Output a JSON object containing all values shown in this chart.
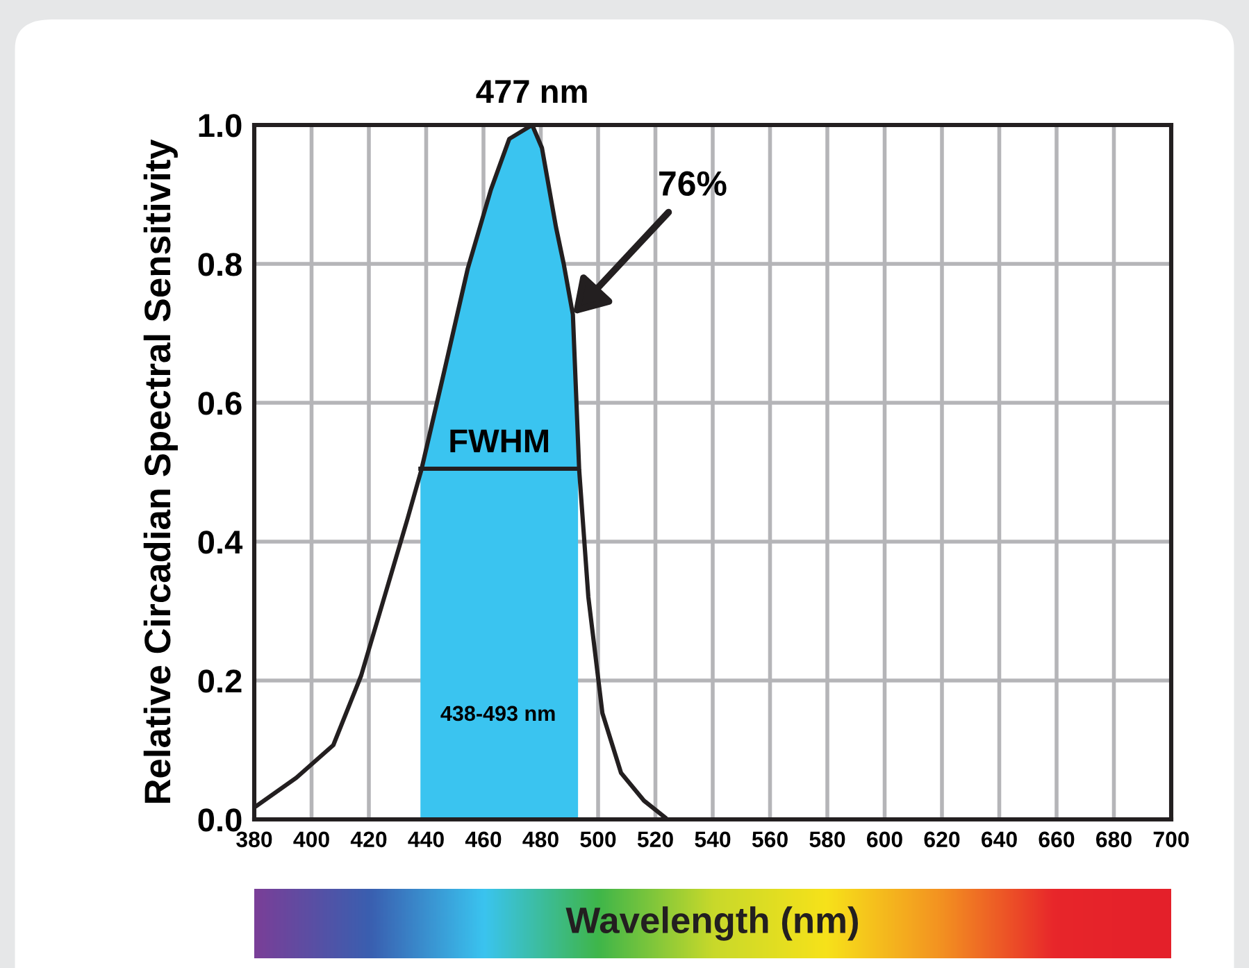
{
  "chart_data": {
    "type": "line",
    "ylabel": "Relative Circadian Spectral Sensitivity",
    "xlabel": "Wavelength (nm)",
    "series": [
      {
        "type": "area",
        "color": "#3ac4f0",
        "x": [
          438,
          446.4,
          454.5,
          462.6,
          469,
          477,
          480.4,
          485.3,
          488,
          491.2,
          493
        ],
        "values": [
          0.5,
          0.647,
          0.793,
          0.907,
          0.98,
          1.0,
          0.967,
          0.853,
          0.8,
          0.727,
          0.5
        ]
      },
      {
        "color": "#231f20",
        "x": [
          381,
          394.7,
          407.6,
          417.3,
          425.4,
          433.5,
          438.3,
          446.4,
          454.5,
          462.6,
          469,
          477,
          480.4,
          485.3,
          488,
          491.2,
          493.4,
          496.6,
          501.5,
          508,
          516,
          523.3
        ],
        "values": [
          0.02,
          0.06,
          0.107,
          0.207,
          0.32,
          0.433,
          0.503,
          0.647,
          0.793,
          0.907,
          0.98,
          1.0,
          0.967,
          0.853,
          0.8,
          0.727,
          0.503,
          0.32,
          0.153,
          0.067,
          0.027,
          0.003
        ]
      },
      {
        "type": "line",
        "color": "#231f20",
        "x": [
          438,
          465.5,
          493
        ],
        "values": [
          0.505,
          0.505,
          0.505
        ]
      }
    ],
    "annotations": [
      {
        "text": "477 nm",
        "x": 477,
        "y": 1.0
      },
      {
        "text": "76%",
        "x": 491.2,
        "y": 0.727
      },
      {
        "text": "FWHM",
        "x": 465.5,
        "y": 0.505
      },
      "438-493 nm"
    ],
    "xlim": [
      380,
      700
    ],
    "xticks": [
      380,
      400,
      420,
      440,
      460,
      480,
      500,
      520,
      540,
      560,
      580,
      600,
      620,
      640,
      660,
      680,
      700
    ],
    "ylim": [
      0,
      1.0
    ],
    "yticks": [
      {
        "value": 0,
        "label": "0.0"
      },
      {
        "value": 0.2,
        "label": "0.2"
      },
      {
        "value": 0.4,
        "label": "0.4"
      },
      {
        "value": 0.6,
        "label": "0.6"
      },
      {
        "value": 0.8,
        "label": "0.8"
      },
      {
        "value": 1.0,
        "label": "1.0"
      }
    ],
    "grid": true,
    "marker": "none",
    "line_style": "solid"
  }
}
